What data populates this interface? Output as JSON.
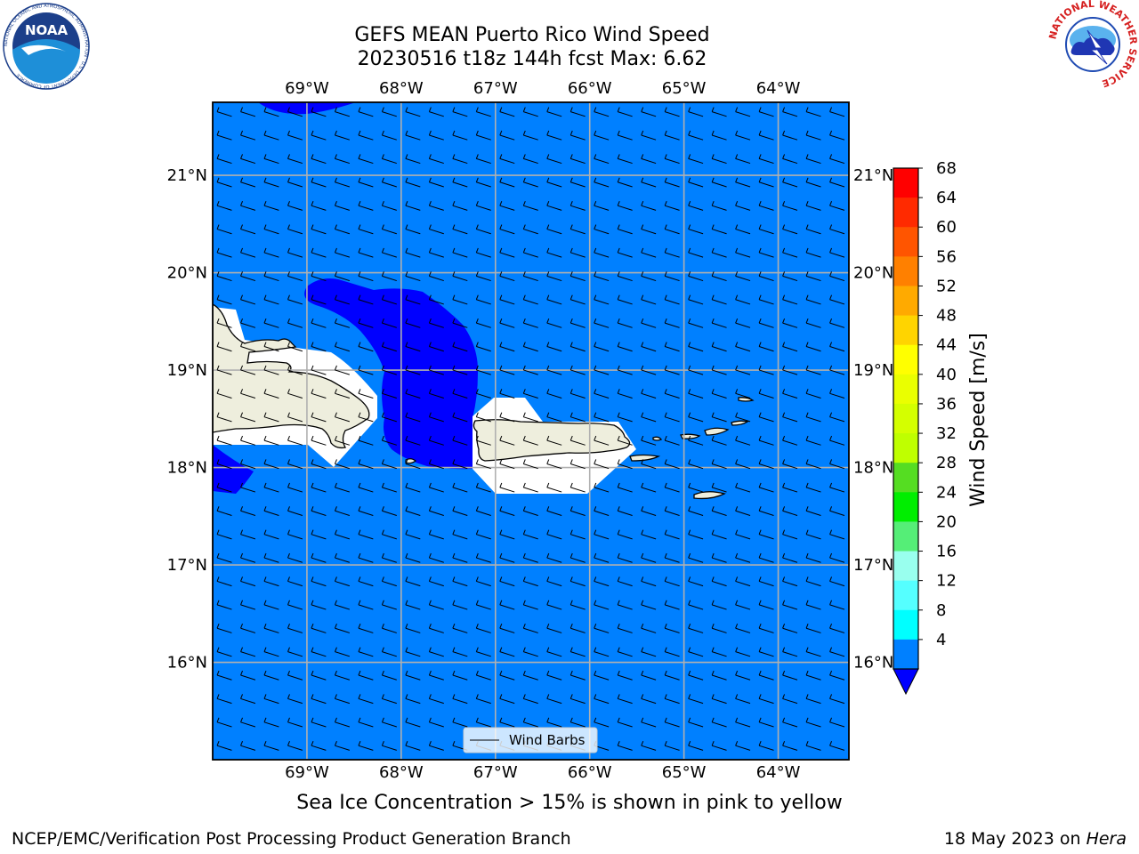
{
  "title": {
    "line1": "GEFS MEAN Puerto Rico Wind Speed",
    "line2": "20230516 t18z 144h fcst   Max: 6.62"
  },
  "map": {
    "lon_labels": [
      "69°W",
      "68°W",
      "67°W",
      "66°W",
      "65°W",
      "64°W"
    ],
    "lat_labels": [
      "21°N",
      "20°N",
      "19°N",
      "18°N",
      "17°N",
      "16°N"
    ],
    "lon_values": [
      -69,
      -68,
      -67,
      -66,
      -65,
      -64
    ],
    "lat_values": [
      21,
      20,
      19,
      18,
      17,
      16
    ],
    "extent": {
      "lon_min": -70.0,
      "lon_max": -63.25,
      "lat_min": 15.0,
      "lat_max": 21.75
    },
    "background_color": "#0080ff",
    "low_wind_color": "#0000ff",
    "land_color": "#eeeedd",
    "legend_label": "Wind Barbs"
  },
  "colorbar": {
    "label": "Wind Speed [m/s]",
    "ticks": [
      "68",
      "64",
      "60",
      "56",
      "52",
      "48",
      "44",
      "40",
      "36",
      "32",
      "28",
      "24",
      "20",
      "16",
      "12",
      "8",
      "4"
    ],
    "colors": [
      "#ff0000",
      "#ff2a00",
      "#ff5500",
      "#ff8000",
      "#ffaa00",
      "#ffd400",
      "#ffff00",
      "#eaff00",
      "#d4ff00",
      "#bfff00",
      "#55dd22",
      "#00ee00",
      "#55ee77",
      "#99ffee",
      "#55ffff",
      "#00ffff",
      "#0080ff"
    ],
    "under_color": "#0000ff"
  },
  "captions": {
    "ice_note": "Sea Ice Concentration > 15% is shown in pink to yellow",
    "footer_left": "NCEP/EMC/Verification Post Processing Product Generation Branch",
    "footer_right_prefix": "18 May 2023 on ",
    "footer_right_machine": "Hera"
  },
  "logos": {
    "noaa_text": "NOAA",
    "noaa_ring": "NATIONAL OCEANIC AND ATMOSPHERIC ADMINISTRATION · U.S. DEPARTMENT OF COMMERCE",
    "nws_ring": "NATIONAL WEATHER SERVICE"
  }
}
